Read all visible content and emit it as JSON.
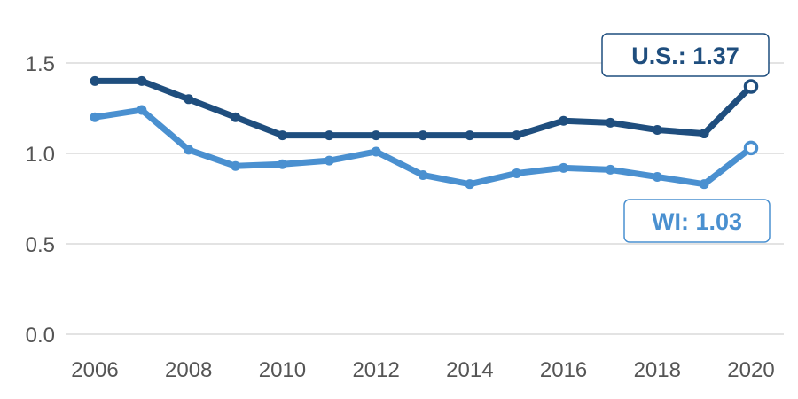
{
  "chart_data": {
    "type": "line",
    "x": [
      2006,
      2007,
      2008,
      2009,
      2010,
      2011,
      2012,
      2013,
      2014,
      2015,
      2016,
      2017,
      2018,
      2019,
      2020
    ],
    "x_ticks": [
      "2006",
      "2008",
      "2010",
      "2012",
      "2014",
      "2016",
      "2018",
      "2020"
    ],
    "y_ticks": [
      "0.0",
      "0.5",
      "1.0",
      "1.5"
    ],
    "ylim": [
      0,
      1.5
    ],
    "xlim": [
      2006,
      2020
    ],
    "grid": true,
    "series": [
      {
        "name": "U.S.",
        "color": "#1f4e7e",
        "end_label": "U.S.: 1.37",
        "values": [
          1.4,
          1.4,
          1.3,
          1.2,
          1.1,
          1.1,
          1.1,
          1.1,
          1.1,
          1.1,
          1.18,
          1.17,
          1.13,
          1.11,
          1.37
        ]
      },
      {
        "name": "WI",
        "color": "#4a90d0",
        "end_label": "WI: 1.03",
        "values": [
          1.2,
          1.24,
          1.02,
          0.93,
          0.94,
          0.96,
          1.01,
          0.88,
          0.83,
          0.89,
          0.92,
          0.91,
          0.87,
          0.83,
          1.03
        ]
      }
    ]
  }
}
